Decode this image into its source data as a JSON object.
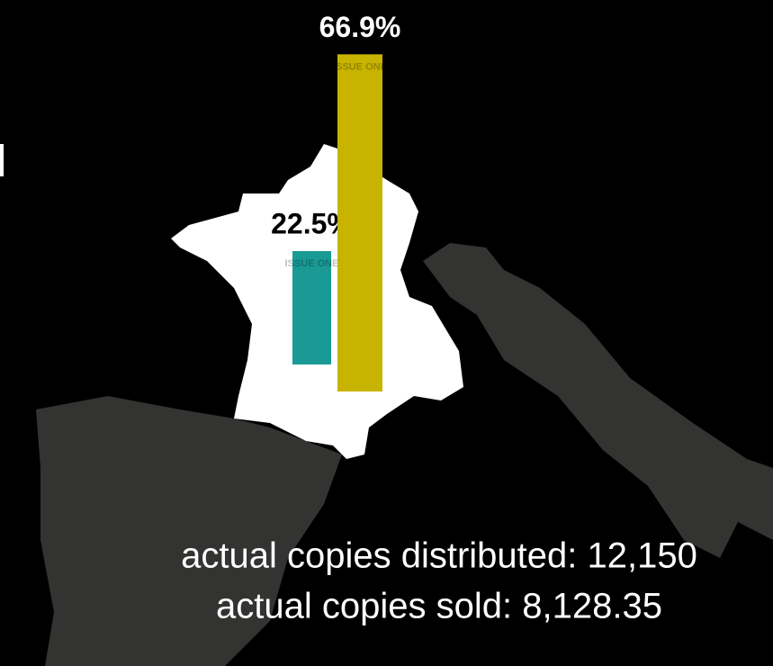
{
  "chart_data": {
    "type": "bar",
    "categories": [
      null,
      null
    ],
    "series": [
      {
        "color": "#1a9a94",
        "values": [
          22.5,
          null
        ],
        "value_labels": [
          "22.5%",
          null
        ]
      },
      {
        "color": "#c8b400",
        "values": [
          null,
          66.9
        ],
        "value_labels": [
          null,
          "66.9%"
        ]
      }
    ],
    "annotations": [
      "ISSUE ONE",
      "actual copies distributed: 12,150",
      "actual copies sold: 8,128.35"
    ]
  }
}
